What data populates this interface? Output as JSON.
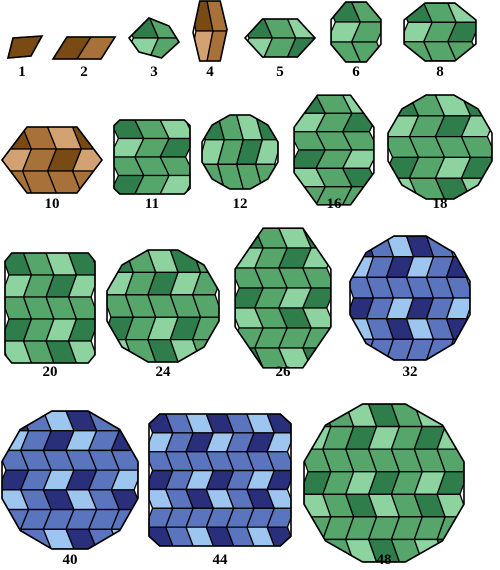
{
  "palettes": {
    "brown": [
      "#7a4a14",
      "#a8713a",
      "#d3a273"
    ],
    "green": [
      "#2f7d4a",
      "#56a66b",
      "#8dd3a0"
    ],
    "blue": [
      "#2a2f7c",
      "#5a74be",
      "#9cc5ef"
    ]
  },
  "panels": [
    {
      "label": "1",
      "count": 1,
      "shape": "rhomb-flat",
      "palette": "brown"
    },
    {
      "label": "2",
      "count": 2,
      "shape": "rhomb-pair",
      "palette": "brown"
    },
    {
      "label": "3",
      "count": 3,
      "shape": "hex-small",
      "palette": "green"
    },
    {
      "label": "4",
      "count": 4,
      "shape": "hex-tall",
      "palette": "brown"
    },
    {
      "label": "5",
      "count": 5,
      "shape": "hex-wide",
      "palette": "green"
    },
    {
      "label": "6",
      "count": 6,
      "shape": "octagon",
      "palette": "green"
    },
    {
      "label": "8",
      "count": 8,
      "shape": "octagon",
      "palette": "green"
    },
    {
      "label": "10",
      "count": 10,
      "shape": "hex-wide",
      "palette": "brown"
    },
    {
      "label": "11",
      "count": 11,
      "shape": "square",
      "palette": "green"
    },
    {
      "label": "12",
      "count": 12,
      "shape": "dodecagon",
      "palette": "green"
    },
    {
      "label": "16",
      "count": 16,
      "shape": "octagon",
      "palette": "green"
    },
    {
      "label": "18",
      "count": 18,
      "shape": "dodecagon",
      "palette": "green"
    },
    {
      "label": "20",
      "count": 20,
      "shape": "square",
      "palette": "green"
    },
    {
      "label": "24",
      "count": 24,
      "shape": "dodecagon",
      "palette": "green"
    },
    {
      "label": "26",
      "count": 26,
      "shape": "octagon",
      "palette": "green"
    },
    {
      "label": "32",
      "count": 32,
      "shape": "dodecagon",
      "palette": "blue"
    },
    {
      "label": "40",
      "count": 40,
      "shape": "dodecagon",
      "palette": "blue"
    },
    {
      "label": "44",
      "count": 44,
      "shape": "square",
      "palette": "blue"
    },
    {
      "label": "48",
      "count": 48,
      "shape": "dodecagon",
      "palette": "green"
    }
  ]
}
